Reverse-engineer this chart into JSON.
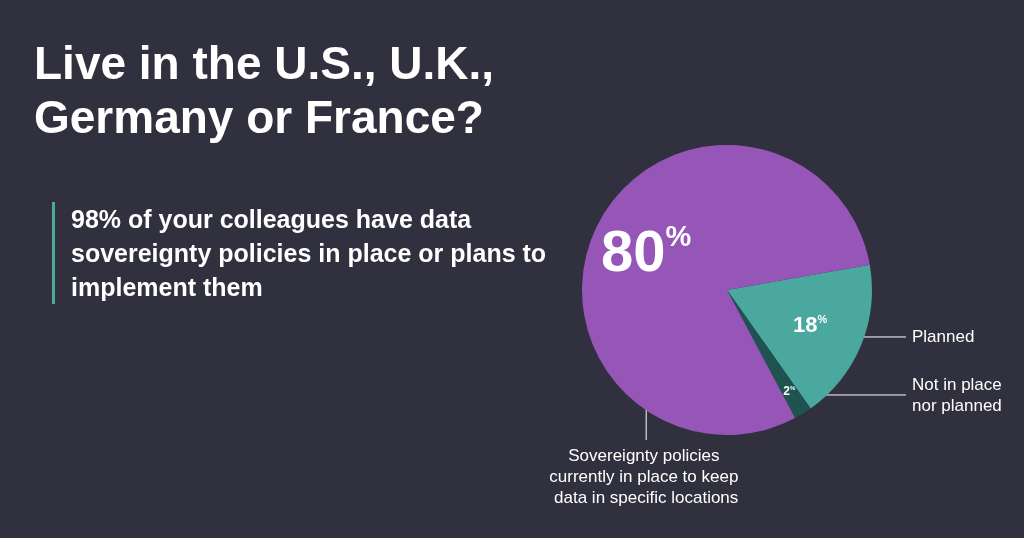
{
  "chart_data": {
    "type": "pie",
    "title": "Live in the U.S., U.K., Germany or France?",
    "subtitle": "98% of your colleagues have data sovereignty policies in place or plans to implement them",
    "categories": [
      "Planned",
      "Not in place nor planned",
      "Sovereignty policies currently in place to keep data in specific locations"
    ],
    "values": [
      18,
      2,
      80
    ],
    "value_labels": [
      "18%",
      "2%",
      "80%"
    ],
    "colors": [
      "#4ba89f",
      "#1f5350",
      "#9656b8"
    ],
    "legend": false
  }
}
